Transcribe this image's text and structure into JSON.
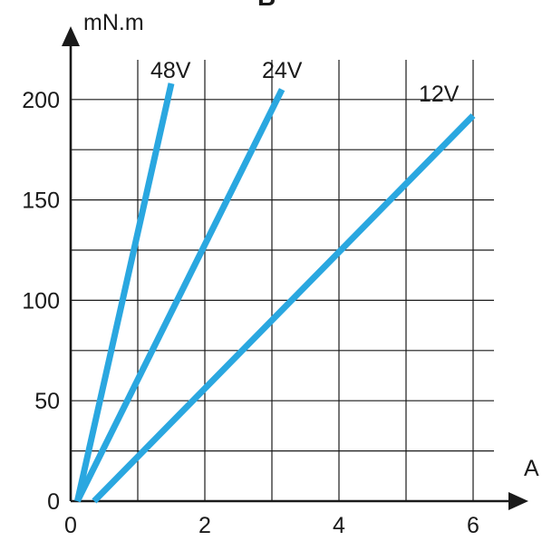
{
  "header": {
    "partial_letter": "B"
  },
  "chart_data": {
    "type": "line",
    "title": "",
    "xlabel": "A",
    "ylabel": "mN.m",
    "xlim": [
      0,
      6.3
    ],
    "ylim": [
      0,
      212
    ],
    "x_ticks": [
      0,
      2,
      4,
      6
    ],
    "x_tick_labels": [
      "0",
      "2",
      "4",
      "6"
    ],
    "y_ticks": [
      0,
      50,
      100,
      150,
      200
    ],
    "y_tick_labels": [
      "0",
      "50",
      "100",
      "150",
      "200"
    ],
    "x_grid": [
      1,
      2,
      3,
      4,
      5,
      6
    ],
    "y_grid": [
      25,
      50,
      75,
      100,
      125,
      150,
      175,
      200
    ],
    "grid": true,
    "legend": "inline labels at line ends",
    "line_color": "#2aa7e0",
    "series": [
      {
        "name": "48V",
        "x": [
          0.1,
          1.5
        ],
        "y": [
          0,
          208
        ]
      },
      {
        "name": "24V",
        "x": [
          0.1,
          3.15
        ],
        "y": [
          0,
          205
        ]
      },
      {
        "name": "12V",
        "x": [
          0.35,
          6.0
        ],
        "y": [
          0,
          192
        ]
      }
    ]
  }
}
